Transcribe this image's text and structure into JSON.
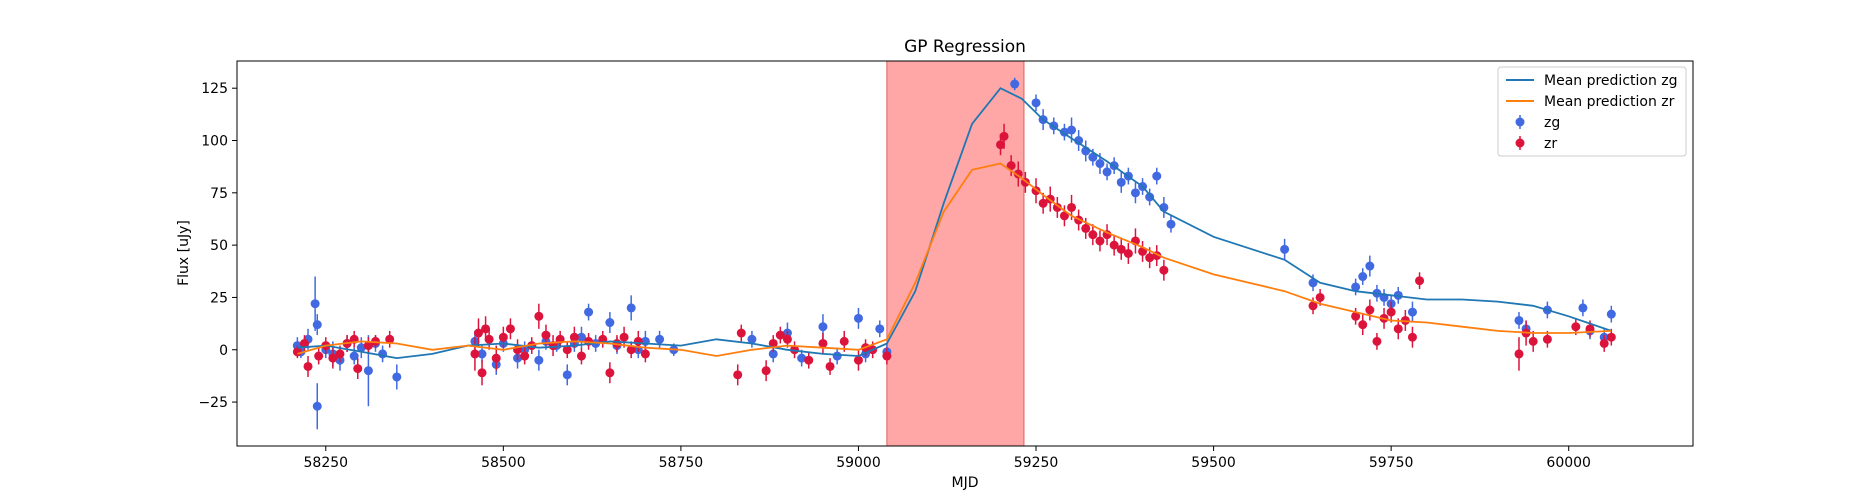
{
  "chart_data": {
    "type": "scatter",
    "title": "GP Regression",
    "xlabel": "MJD",
    "ylabel": "Flux [uJy]",
    "xlim": [
      58125,
      60175
    ],
    "ylim": [
      -46,
      138
    ],
    "xticks": [
      58250,
      58500,
      58750,
      59000,
      59250,
      59500,
      59750,
      60000
    ],
    "yticks": [
      -25,
      0,
      25,
      50,
      75,
      100,
      125
    ],
    "grid": false,
    "legend_position": "top-right",
    "shaded_region": {
      "x0": 59040,
      "x1": 59233,
      "color": "#ff8080"
    },
    "colors": {
      "zg_points": "#4169e1",
      "zr_points": "#dc143c",
      "zg_line": "#1f77b4",
      "zr_line": "#ff7f0e"
    },
    "lines": [
      {
        "name": "Mean prediction zg",
        "x": [
          58210,
          58250,
          58300,
          58350,
          58400,
          58450,
          58500,
          58550,
          58600,
          58650,
          58700,
          58750,
          58800,
          58850,
          58900,
          58950,
          59000,
          59040,
          59080,
          59120,
          59160,
          59200,
          59230,
          59260,
          59300,
          59350,
          59400,
          59430,
          59500,
          59600,
          59650,
          59700,
          59750,
          59800,
          59850,
          59900,
          59950,
          60000,
          60060
        ],
        "y": [
          1,
          2,
          -1,
          -4,
          -2,
          2,
          3,
          1,
          2,
          4,
          3,
          2,
          5,
          3,
          0,
          -2,
          -3,
          3,
          28,
          70,
          108,
          125,
          120,
          110,
          101,
          90,
          78,
          66,
          54,
          43,
          32,
          28,
          26,
          24,
          24,
          23,
          21,
          16,
          9
        ]
      },
      {
        "name": "Mean prediction zr",
        "x": [
          58210,
          58250,
          58300,
          58350,
          58400,
          58450,
          58500,
          58550,
          58600,
          58650,
          58700,
          58750,
          58800,
          58850,
          58900,
          58950,
          59000,
          59040,
          59080,
          59120,
          59160,
          59200,
          59230,
          59260,
          59300,
          59350,
          59400,
          59430,
          59500,
          59600,
          59650,
          59700,
          59750,
          59800,
          59850,
          59900,
          59950,
          60000,
          60060
        ],
        "y": [
          -2,
          2,
          4,
          3,
          0,
          2,
          0,
          3,
          4,
          3,
          1,
          0,
          -3,
          0,
          2,
          1,
          0,
          5,
          32,
          66,
          86,
          89,
          82,
          74,
          64,
          56,
          49,
          44,
          36,
          28,
          22,
          18,
          14,
          13,
          11,
          9,
          8,
          8,
          9
        ]
      }
    ],
    "series": [
      {
        "name": "zg",
        "points": [
          [
            58210,
            2,
            4
          ],
          [
            58215,
            -1,
            3
          ],
          [
            58225,
            5,
            5
          ],
          [
            58235,
            22,
            13
          ],
          [
            58238,
            12,
            5
          ],
          [
            58238,
            -27,
            11
          ],
          [
            58250,
            0,
            4
          ],
          [
            58260,
            -2,
            6
          ],
          [
            58270,
            -5,
            5
          ],
          [
            58280,
            3,
            4
          ],
          [
            58290,
            -3,
            4
          ],
          [
            58300,
            1,
            5
          ],
          [
            58310,
            -10,
            17
          ],
          [
            58320,
            3,
            4
          ],
          [
            58330,
            -2,
            4
          ],
          [
            58350,
            -13,
            6
          ],
          [
            58460,
            4,
            5
          ],
          [
            58470,
            -2,
            4
          ],
          [
            58490,
            -7,
            5
          ],
          [
            58500,
            3,
            4
          ],
          [
            58520,
            -4,
            5
          ],
          [
            58530,
            0,
            4
          ],
          [
            58550,
            -5,
            5
          ],
          [
            58560,
            4,
            4
          ],
          [
            58575,
            2,
            3
          ],
          [
            58590,
            -12,
            5
          ],
          [
            58600,
            3,
            4
          ],
          [
            58610,
            6,
            5
          ],
          [
            58620,
            18,
            4
          ],
          [
            58630,
            3,
            4
          ],
          [
            58650,
            13,
            5
          ],
          [
            58660,
            2,
            4
          ],
          [
            58680,
            20,
            6
          ],
          [
            58690,
            0,
            4
          ],
          [
            58700,
            4,
            5
          ],
          [
            58720,
            5,
            4
          ],
          [
            58740,
            0,
            3
          ],
          [
            58850,
            5,
            4
          ],
          [
            58880,
            -2,
            4
          ],
          [
            58900,
            8,
            5
          ],
          [
            58920,
            -4,
            4
          ],
          [
            58950,
            11,
            6
          ],
          [
            58970,
            -3,
            4
          ],
          [
            59000,
            15,
            5
          ],
          [
            59010,
            -2,
            4
          ],
          [
            59030,
            10,
            4
          ],
          [
            59040,
            -1,
            4
          ],
          [
            59220,
            127,
            3
          ],
          [
            59250,
            118,
            4
          ],
          [
            59260,
            110,
            5
          ],
          [
            59275,
            107,
            4
          ],
          [
            59290,
            104,
            4
          ],
          [
            59300,
            105,
            6
          ],
          [
            59310,
            100,
            5
          ],
          [
            59320,
            95,
            5
          ],
          [
            59330,
            92,
            4
          ],
          [
            59340,
            89,
            5
          ],
          [
            59350,
            85,
            4
          ],
          [
            59360,
            88,
            4
          ],
          [
            59370,
            80,
            5
          ],
          [
            59380,
            83,
            4
          ],
          [
            59390,
            75,
            5
          ],
          [
            59400,
            78,
            4
          ],
          [
            59410,
            73,
            4
          ],
          [
            59420,
            83,
            4
          ],
          [
            59430,
            68,
            5
          ],
          [
            59440,
            60,
            4
          ],
          [
            59600,
            48,
            5
          ],
          [
            59640,
            32,
            4
          ],
          [
            59700,
            30,
            4
          ],
          [
            59710,
            35,
            4
          ],
          [
            59720,
            40,
            5
          ],
          [
            59730,
            27,
            4
          ],
          [
            59740,
            25,
            4
          ],
          [
            59750,
            22,
            4
          ],
          [
            59760,
            26,
            4
          ],
          [
            59780,
            18,
            5
          ],
          [
            59930,
            14,
            4
          ],
          [
            59940,
            10,
            4
          ],
          [
            59970,
            19,
            4
          ],
          [
            60020,
            20,
            4
          ],
          [
            60030,
            9,
            4
          ],
          [
            60050,
            6,
            4
          ],
          [
            60060,
            17,
            4
          ]
        ]
      },
      {
        "name": "zr",
        "points": [
          [
            58210,
            -1,
            3
          ],
          [
            58220,
            3,
            4
          ],
          [
            58225,
            -8,
            5
          ],
          [
            58240,
            -3,
            4
          ],
          [
            58250,
            2,
            4
          ],
          [
            58260,
            -4,
            5
          ],
          [
            58270,
            -2,
            4
          ],
          [
            58280,
            3,
            4
          ],
          [
            58290,
            5,
            4
          ],
          [
            58295,
            -9,
            5
          ],
          [
            58310,
            2,
            4
          ],
          [
            58320,
            4,
            3
          ],
          [
            58340,
            5,
            4
          ],
          [
            58460,
            -2,
            8
          ],
          [
            58465,
            8,
            7
          ],
          [
            58470,
            -11,
            6
          ],
          [
            58475,
            10,
            6
          ],
          [
            58480,
            5,
            5
          ],
          [
            58490,
            -4,
            6
          ],
          [
            58500,
            6,
            5
          ],
          [
            58510,
            10,
            5
          ],
          [
            58520,
            0,
            5
          ],
          [
            58530,
            -3,
            4
          ],
          [
            58540,
            2,
            4
          ],
          [
            58550,
            16,
            6
          ],
          [
            58560,
            7,
            5
          ],
          [
            58570,
            2,
            5
          ],
          [
            58580,
            5,
            4
          ],
          [
            58590,
            0,
            4
          ],
          [
            58600,
            6,
            5
          ],
          [
            58610,
            -3,
            4
          ],
          [
            58620,
            4,
            4
          ],
          [
            58640,
            5,
            4
          ],
          [
            58650,
            -11,
            5
          ],
          [
            58660,
            3,
            4
          ],
          [
            58670,
            6,
            5
          ],
          [
            58680,
            0,
            4
          ],
          [
            58690,
            4,
            5
          ],
          [
            58700,
            -2,
            4
          ],
          [
            58830,
            -12,
            5
          ],
          [
            58835,
            8,
            4
          ],
          [
            58870,
            -10,
            5
          ],
          [
            58880,
            3,
            4
          ],
          [
            58890,
            7,
            4
          ],
          [
            58900,
            5,
            4
          ],
          [
            58910,
            0,
            4
          ],
          [
            58930,
            -5,
            4
          ],
          [
            58950,
            3,
            5
          ],
          [
            58960,
            -8,
            4
          ],
          [
            58980,
            4,
            5
          ],
          [
            59000,
            -5,
            5
          ],
          [
            59010,
            1,
            4
          ],
          [
            59020,
            0,
            4
          ],
          [
            59040,
            -3,
            4
          ],
          [
            59200,
            98,
            5
          ],
          [
            59205,
            102,
            6
          ],
          [
            59215,
            88,
            5
          ],
          [
            59225,
            84,
            6
          ],
          [
            59235,
            80,
            5
          ],
          [
            59250,
            76,
            6
          ],
          [
            59260,
            70,
            5
          ],
          [
            59270,
            72,
            6
          ],
          [
            59280,
            68,
            5
          ],
          [
            59290,
            64,
            5
          ],
          [
            59300,
            68,
            6
          ],
          [
            59310,
            62,
            5
          ],
          [
            59320,
            58,
            5
          ],
          [
            59330,
            55,
            5
          ],
          [
            59340,
            52,
            5
          ],
          [
            59350,
            55,
            5
          ],
          [
            59360,
            50,
            5
          ],
          [
            59370,
            48,
            5
          ],
          [
            59380,
            46,
            5
          ],
          [
            59390,
            52,
            6
          ],
          [
            59400,
            47,
            5
          ],
          [
            59410,
            44,
            5
          ],
          [
            59420,
            45,
            5
          ],
          [
            59430,
            38,
            5
          ],
          [
            59640,
            21,
            4
          ],
          [
            59650,
            25,
            4
          ],
          [
            59700,
            16,
            4
          ],
          [
            59710,
            12,
            5
          ],
          [
            59720,
            19,
            5
          ],
          [
            59730,
            4,
            4
          ],
          [
            59740,
            15,
            5
          ],
          [
            59750,
            18,
            5
          ],
          [
            59760,
            10,
            5
          ],
          [
            59770,
            14,
            5
          ],
          [
            59780,
            6,
            5
          ],
          [
            59790,
            33,
            4
          ],
          [
            59930,
            -2,
            8
          ],
          [
            59940,
            8,
            6
          ],
          [
            59950,
            4,
            5
          ],
          [
            59970,
            5,
            4
          ],
          [
            60010,
            11,
            4
          ],
          [
            60030,
            10,
            4
          ],
          [
            60050,
            3,
            4
          ],
          [
            60060,
            6,
            4
          ]
        ]
      }
    ]
  }
}
